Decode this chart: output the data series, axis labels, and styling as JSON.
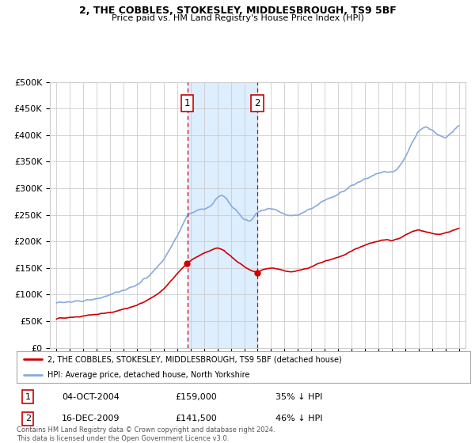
{
  "title1": "2, THE COBBLES, STOKESLEY, MIDDLESBROUGH, TS9 5BF",
  "title2": "Price paid vs. HM Land Registry's House Price Index (HPI)",
  "legend_label_red": "2, THE COBBLES, STOKESLEY, MIDDLESBROUGH, TS9 5BF (detached house)",
  "legend_label_blue": "HPI: Average price, detached house, North Yorkshire",
  "footnote": "Contains HM Land Registry data © Crown copyright and database right 2024.\nThis data is licensed under the Open Government Licence v3.0.",
  "transaction1": {
    "label": "1",
    "date": "04-OCT-2004",
    "price": "£159,000",
    "hpi": "35% ↓ HPI",
    "x": 2004.75
  },
  "transaction2": {
    "label": "2",
    "date": "16-DEC-2009",
    "price": "£141,500",
    "hpi": "46% ↓ HPI",
    "x": 2009.96
  },
  "ylim": [
    0,
    500000
  ],
  "xlim": [
    1994.5,
    2025.5
  ],
  "yticks": [
    0,
    50000,
    100000,
    150000,
    200000,
    250000,
    300000,
    350000,
    400000,
    450000,
    500000
  ],
  "ytick_labels": [
    "£0",
    "£50K",
    "£100K",
    "£150K",
    "£200K",
    "£250K",
    "£300K",
    "£350K",
    "£400K",
    "£450K",
    "£500K"
  ],
  "xticks": [
    1995,
    1996,
    1997,
    1998,
    1999,
    2000,
    2001,
    2002,
    2003,
    2004,
    2005,
    2006,
    2007,
    2008,
    2009,
    2010,
    2011,
    2012,
    2013,
    2014,
    2015,
    2016,
    2017,
    2018,
    2019,
    2020,
    2021,
    2022,
    2023,
    2024,
    2025
  ],
  "bg_color": "#ffffff",
  "grid_color": "#cccccc",
  "red_color": "#cc0000",
  "blue_color": "#88aadd",
  "shade_color": "#ddeeff",
  "marker1_x": 2004.75,
  "marker1_y_red": 159000,
  "marker2_x": 2009.96,
  "marker2_y_red": 141500
}
